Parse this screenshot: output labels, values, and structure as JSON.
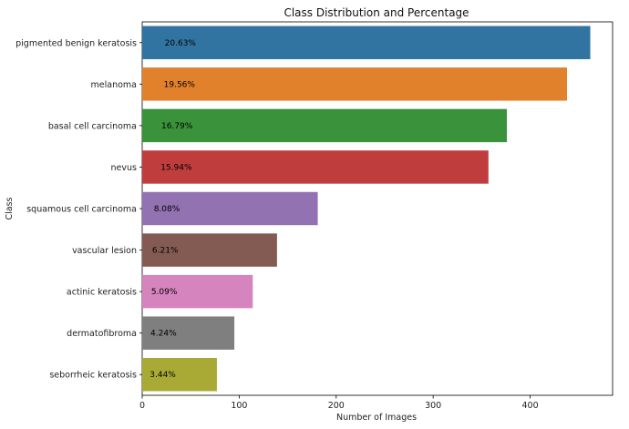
{
  "chart_data": {
    "type": "bar",
    "orientation": "horizontal",
    "title": "Class Distribution and Percentage",
    "xlabel": "Number of Images",
    "ylabel": "Class",
    "xlim": [
      0,
      485
    ],
    "xticks": [
      "0",
      "100",
      "200",
      "300",
      "400"
    ],
    "grid": false,
    "categories": [
      "pigmented benign keratosis",
      "melanoma",
      "basal cell carcinoma",
      "nevus",
      "squamous cell carcinoma",
      "vascular lesion",
      "actinic keratosis",
      "dermatofibroma",
      "seborrheic keratosis"
    ],
    "values": [
      462,
      438,
      376,
      357,
      181,
      139,
      114,
      95,
      77
    ],
    "percent_labels": [
      "20.63%",
      "19.56%",
      "16.79%",
      "15.94%",
      "8.08%",
      "6.21%",
      "5.09%",
      "4.24%",
      "3.44%"
    ],
    "colors": [
      "#3274a1",
      "#e1812c",
      "#3a923a",
      "#c03d3e",
      "#9372b2",
      "#845b53",
      "#d684bd",
      "#7f7f7f",
      "#a9aa35"
    ]
  }
}
